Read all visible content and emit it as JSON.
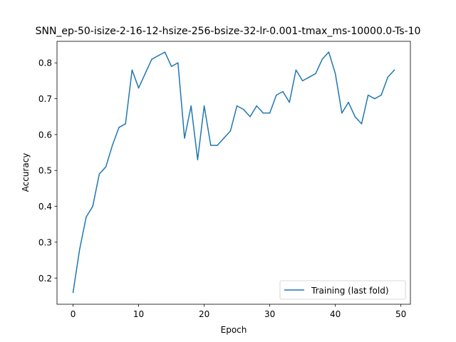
{
  "chart_data": {
    "type": "line",
    "title": "SNN_ep-50-isize-2-16-12-hsize-256-bsize-32-lr-0.001-tmax_ms-10000.0-Ts-10",
    "xlabel": "Epoch",
    "ylabel": "Accuracy",
    "xlim": [
      -2.45,
      51.45
    ],
    "ylim": [
      0.127,
      0.86
    ],
    "xticks": [
      0,
      10,
      20,
      30,
      40,
      50
    ],
    "xtick_labels": [
      "0",
      "10",
      "20",
      "30",
      "40",
      "50"
    ],
    "yticks": [
      0.2,
      0.3,
      0.4,
      0.5,
      0.6,
      0.7,
      0.8
    ],
    "ytick_labels": [
      "0.2",
      "0.3",
      "0.4",
      "0.5",
      "0.6",
      "0.7",
      "0.8"
    ],
    "grid": false,
    "legend_position": "lower right",
    "series": [
      {
        "name": "Training (last fold)",
        "color": "#1f77b4",
        "x": [
          0,
          1,
          2,
          3,
          4,
          5,
          6,
          7,
          8,
          9,
          10,
          11,
          12,
          13,
          14,
          15,
          16,
          17,
          18,
          19,
          20,
          21,
          22,
          23,
          24,
          25,
          26,
          27,
          28,
          29,
          30,
          31,
          32,
          33,
          34,
          35,
          36,
          37,
          38,
          39,
          40,
          41,
          42,
          43,
          44,
          45,
          46,
          47,
          48,
          49
        ],
        "values": [
          0.16,
          0.28,
          0.37,
          0.4,
          0.49,
          0.51,
          0.57,
          0.62,
          0.63,
          0.78,
          0.73,
          0.77,
          0.81,
          0.82,
          0.83,
          0.79,
          0.8,
          0.59,
          0.68,
          0.53,
          0.68,
          0.57,
          0.57,
          0.59,
          0.61,
          0.68,
          0.67,
          0.65,
          0.68,
          0.66,
          0.66,
          0.71,
          0.72,
          0.69,
          0.78,
          0.75,
          0.76,
          0.77,
          0.81,
          0.83,
          0.77,
          0.66,
          0.69,
          0.65,
          0.63,
          0.71,
          0.7,
          0.71,
          0.76,
          0.78
        ]
      }
    ]
  }
}
